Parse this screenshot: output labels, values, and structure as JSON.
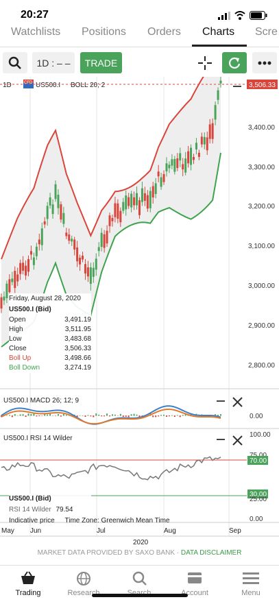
{
  "status_bar": {
    "time": "20:27"
  },
  "tabs": [
    {
      "label": "Watchlists"
    },
    {
      "label": "Positions"
    },
    {
      "label": "Orders"
    },
    {
      "label": "Charts",
      "active": true
    },
    {
      "label": "Scre"
    }
  ],
  "toolbar": {
    "timeframe": "1D : – –",
    "trade_label": "TRADE"
  },
  "main_chart": {
    "timeframe_tag": "1D",
    "cfd_badge": "CFD",
    "instrument": "US500.I",
    "indicator": "BOLL 20; 2",
    "last_price": "3,506.33",
    "y_ticks": [
      "3,400.00",
      "3,300.00",
      "3,200.00",
      "3,100.00",
      "3,000.00",
      "2,900.00",
      "2,800.00"
    ]
  },
  "info_box": {
    "date": "Friday, August 28, 2020",
    "instrument": "US500.I (Bid)",
    "rows": [
      {
        "label": "Open",
        "value": "3,491.19"
      },
      {
        "label": "High",
        "value": "3,511.95"
      },
      {
        "label": "Low",
        "value": "3,483.68"
      },
      {
        "label": "Close",
        "value": "3,506.33"
      }
    ],
    "boll_up": {
      "label": "Boll Up",
      "value": "3,498.66"
    },
    "boll_down": {
      "label": "Boll Down",
      "value": "3,274.19"
    }
  },
  "macd_panel": {
    "title": "US500.I  MACD 26; 12; 9",
    "y_tick": "0.00"
  },
  "rsi_panel": {
    "title": "US500.I  RSI 14 Wilder",
    "y_ticks": [
      "100.00",
      "75.00",
      "70.00",
      "30.00",
      "25.00",
      "0.00"
    ],
    "instrument": "US500.I (Bid)",
    "rsi_label": "RSI 14 Wilder",
    "rsi_value": "79.54",
    "overbought": 70,
    "oversold": 30
  },
  "footer_info": {
    "indicative": "Indicative price",
    "timezone": "Time Zone: Greenwich Mean Time"
  },
  "x_axis": {
    "months": [
      "May",
      "Jun",
      "Jul",
      "Aug",
      "Sep"
    ],
    "year": "2020"
  },
  "provider": {
    "text": "MARKET DATA PROVIDED BY SAXO BANK · ",
    "disclaimer": "DATA DISCLAIMER"
  },
  "bottom_nav": [
    {
      "label": "Trading",
      "icon": "basket-icon",
      "active": true
    },
    {
      "label": "Research",
      "icon": "globe-icon"
    },
    {
      "label": "Search",
      "icon": "search-icon"
    },
    {
      "label": "Account",
      "icon": "account-icon"
    },
    {
      "label": "Menu",
      "icon": "menu-icon"
    }
  ],
  "colors": {
    "green": "#4aa35a",
    "red": "#d9453b",
    "up_band": "#d9453b",
    "down_band": "#3fa34d"
  }
}
